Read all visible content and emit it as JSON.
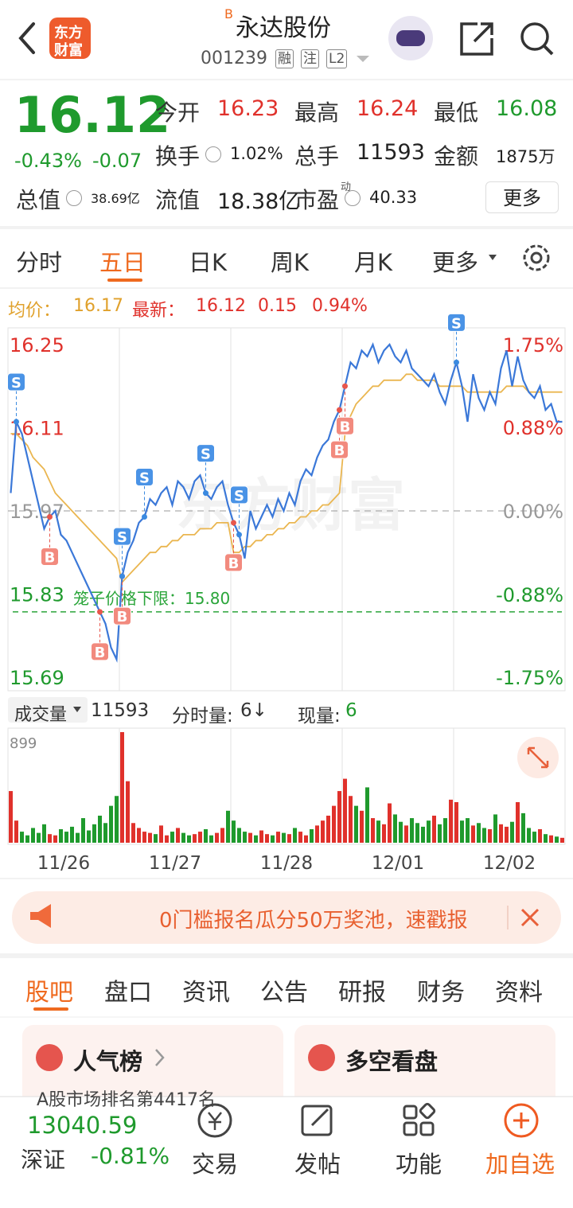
{
  "header": {
    "logo": [
      "东方",
      "财富"
    ],
    "badge": "B",
    "title": "永达股份",
    "code": "001239",
    "tags": [
      "融",
      "注",
      "L2"
    ]
  },
  "quote": {
    "price": "16.12",
    "change_pct": "-0.43%",
    "change": "-0.07",
    "fields": [
      {
        "label": "今开",
        "value": "16.23",
        "color": "#e0312b"
      },
      {
        "label": "最高",
        "value": "16.24",
        "color": "#e0312b"
      },
      {
        "label": "最低",
        "value": "16.08",
        "color": "#1f9a2d"
      },
      {
        "label": "换手",
        "value": "1.02%"
      },
      {
        "label": "总手",
        "value": "11593"
      },
      {
        "label": "金额",
        "value": "1875万"
      },
      {
        "label": "总值",
        "value": "38.69亿"
      },
      {
        "label": "流值",
        "value": "18.38亿"
      },
      {
        "label": "市盈",
        "sup": "动",
        "value": "40.33"
      }
    ],
    "more": "更多"
  },
  "tabs": {
    "items": [
      "分时",
      "五日",
      "日K",
      "周K",
      "月K",
      "更多"
    ],
    "active": 1
  },
  "info": {
    "avg_label": "均价：",
    "avg": "16.17",
    "last_label": "最新：",
    "last": "16.12",
    "change": "0.15",
    "change_pct": "0.94%"
  },
  "volume_info": {
    "label": "成交量",
    "total": "11593",
    "per_label": "分时量:",
    "per": "6↓",
    "now_label": "现量:",
    "now": "6"
  },
  "chart_data": [
    {
      "type": "line",
      "watermark": "东方财富",
      "ylim": [
        15.69,
        16.25
      ],
      "yticks": [
        16.25,
        16.11,
        15.97,
        15.83,
        15.69
      ],
      "y2lim": [
        -1.75,
        1.75
      ],
      "y2ticks": [
        {
          "value": 1.75,
          "label": "1.75%"
        },
        {
          "value": 0.88,
          "label": "0.88%"
        },
        {
          "value": 0,
          "label": "0.00%"
        },
        {
          "value": -0.88,
          "label": "-0.88%"
        },
        {
          "value": -1.75,
          "label": "-1.75%"
        }
      ],
      "up_color": "#e0312b",
      "down_color": "#1f9a2d",
      "series": [
        {
          "color": "#3b78d8",
          "values": [
            16.0,
            16.12,
            16.1,
            16.06,
            16.02,
            15.98,
            15.94,
            15.96,
            15.97,
            15.93,
            15.92,
            15.9,
            15.88,
            15.86,
            15.84,
            15.82,
            15.8,
            15.78,
            15.74,
            15.72,
            15.86,
            15.9,
            15.92,
            15.95,
            15.96,
            15.99,
            15.98,
            16.0,
            16.01,
            15.98,
            16.02,
            16.01,
            15.99,
            16.02,
            16.03,
            16.0,
            15.99,
            16.01,
            16.02,
            15.98,
            15.95,
            15.93,
            15.89,
            15.97,
            15.94,
            15.96,
            15.98,
            15.96,
            15.99,
            15.97,
            16.0,
            15.98,
            16.02,
            16.04,
            16.03,
            16.06,
            16.08,
            16.09,
            16.12,
            16.14,
            16.18,
            16.22,
            16.21,
            16.24,
            16.23,
            16.25,
            16.22,
            16.24,
            16.25,
            16.23,
            16.22,
            16.24,
            16.21,
            16.2,
            16.19,
            16.18,
            16.2,
            16.17,
            16.15,
            16.19,
            16.22,
            16.18,
            16.12,
            16.2,
            16.16,
            16.14,
            16.17,
            16.15,
            16.21,
            16.24,
            16.18,
            16.23,
            16.19,
            16.17,
            16.16,
            16.18,
            16.14,
            16.15,
            16.12,
            16.12
          ]
        },
        {
          "color": "#eab650",
          "values": [
            16.1,
            16.1,
            16.09,
            16.08,
            16.06,
            16.05,
            16.04,
            16.02,
            16.0,
            15.99,
            15.98,
            15.97,
            15.96,
            15.95,
            15.94,
            15.93,
            15.92,
            15.91,
            15.9,
            15.89,
            15.85,
            15.86,
            15.87,
            15.88,
            15.89,
            15.9,
            15.9,
            15.91,
            15.91,
            15.92,
            15.92,
            15.93,
            15.93,
            15.93,
            15.94,
            15.94,
            15.94,
            15.95,
            15.95,
            15.95,
            15.9,
            15.9,
            15.91,
            15.91,
            15.92,
            15.92,
            15.93,
            15.93,
            15.94,
            15.94,
            15.95,
            15.95,
            15.96,
            15.96,
            15.97,
            15.97,
            15.98,
            15.98,
            15.99,
            16.0,
            16.1,
            16.13,
            16.15,
            16.16,
            16.17,
            16.18,
            16.18,
            16.19,
            16.19,
            16.19,
            16.19,
            16.2,
            16.2,
            16.19,
            16.19,
            16.19,
            16.19,
            16.18,
            16.18,
            16.18,
            16.18,
            16.18,
            16.17,
            16.17,
            16.17,
            16.17,
            16.17,
            16.17,
            16.17,
            16.18,
            16.18,
            16.18,
            16.18,
            16.17,
            16.17,
            16.17,
            16.17,
            16.17,
            16.17,
            16.17
          ]
        }
      ],
      "cage": {
        "label": "笼子价格下限：15.80",
        "value": 15.8
      },
      "markers": [
        {
          "label": "S",
          "x": 1
        },
        {
          "label": "B",
          "x": 7
        },
        {
          "label": "B",
          "x": 16
        },
        {
          "label": "B",
          "x": 20
        },
        {
          "label": "S",
          "x": 20
        },
        {
          "label": "S",
          "x": 24
        },
        {
          "label": "S",
          "x": 35
        },
        {
          "label": "S",
          "x": 41
        },
        {
          "label": "B",
          "x": 40
        },
        {
          "label": "B",
          "x": 59
        },
        {
          "label": "B",
          "x": 60
        },
        {
          "label": "S",
          "x": 80
        }
      ]
    },
    {
      "type": "bar",
      "days": [
        "11/26",
        "11/27",
        "11/28",
        "12/01",
        "12/02"
      ],
      "ylim": [
        0,
        899
      ],
      "yticks": [
        899
      ],
      "values": [
        420,
        180,
        90,
        60,
        120,
        80,
        150,
        70,
        60,
        110,
        90,
        130,
        80,
        200,
        100,
        150,
        220,
        160,
        300,
        380,
        899,
        500,
        160,
        120,
        90,
        80,
        70,
        140,
        60,
        90,
        120,
        80,
        60,
        70,
        90,
        110,
        60,
        80,
        120,
        260,
        180,
        120,
        90,
        80,
        60,
        100,
        70,
        60,
        90,
        80,
        70,
        120,
        90,
        60,
        110,
        140,
        180,
        220,
        300,
        420,
        520,
        380,
        300,
        260,
        450,
        200,
        180,
        150,
        320,
        230,
        170,
        140,
        200,
        160,
        130,
        180,
        220,
        150,
        200,
        350,
        330,
        180,
        200,
        140,
        160,
        120,
        110,
        230,
        150,
        130,
        170,
        330,
        240,
        120,
        90,
        110,
        70,
        60,
        50,
        40
      ]
    }
  ],
  "banner": {
    "text": "0门槛报名瓜分50万奖池，速戳报"
  },
  "sections": {
    "items": [
      "股吧",
      "盘口",
      "资讯",
      "公告",
      "研报",
      "财务",
      "资料"
    ],
    "active": 0
  },
  "cards": [
    {
      "title": "人气榜",
      "text": "A股市场排名第4417名"
    },
    {
      "title": "多空看盘"
    }
  ],
  "bottom": {
    "index_value": "13040.59",
    "index_name": "深证",
    "index_change": "-0.81%",
    "items": [
      "交易",
      "发帖",
      "功能",
      "加自选"
    ]
  }
}
